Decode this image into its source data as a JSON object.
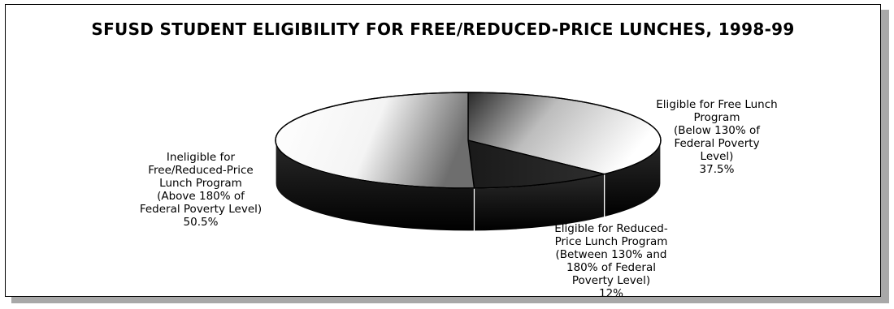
{
  "chart_data": {
    "type": "pie",
    "title": "SFUSD STUDENT ELIGIBILITY FOR FREE/REDUCED-PRICE LUNCHES, 1998-99",
    "slices": [
      {
        "label_lines": [
          "Eligible for Free Lunch",
          "Program",
          "(Below 130% of",
          "Federal Poverty",
          "Level)"
        ],
        "value": 37.5,
        "value_label": "37.5%"
      },
      {
        "label_lines": [
          "Eligible for Reduced-",
          "Price Lunch Program",
          "(Between 130% and",
          "180% of Federal",
          "Poverty Level)"
        ],
        "value": 12,
        "value_label": "12%"
      },
      {
        "label_lines": [
          "Ineligible for",
          "Free/Reduced-Price",
          "Lunch Program",
          "(Above 180% of",
          "Federal Poverty Level)"
        ],
        "value": 50.5,
        "value_label": "50.5%"
      }
    ],
    "style": "3d",
    "legend": "none"
  }
}
